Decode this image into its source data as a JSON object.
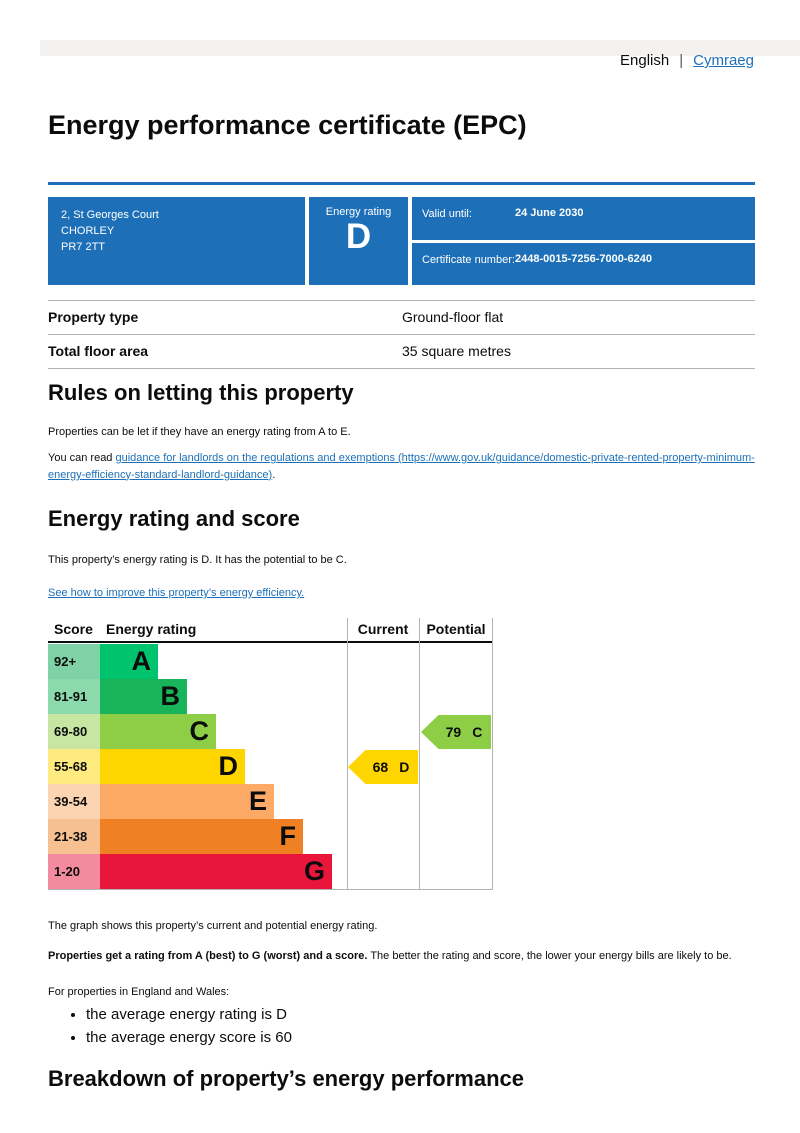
{
  "language_bar": {
    "current": "English",
    "separator": "|",
    "link": "Cymraeg"
  },
  "page_title": "Energy performance certificate (EPC)",
  "banner": {
    "address_lines": [
      "2, St Georges Court",
      "CHORLEY",
      "PR7 2TT"
    ],
    "rating_label": "Energy rating",
    "rating_value": "D",
    "valid_until_label": "Valid until:",
    "valid_until_value": "24 June 2030",
    "certificate_number_label": "Certificate number:",
    "certificate_number_value": "2448-0015-7256-7000-6240"
  },
  "summary": {
    "rows": [
      {
        "label": "Property type",
        "value": "Ground-floor flat"
      },
      {
        "label": "Total floor area",
        "value": "35 square metres"
      }
    ]
  },
  "rules_section": {
    "heading": "Rules on letting this property",
    "paragraph1": "Properties can be let if they have an energy rating from A to E.",
    "paragraph2_prefix": "You can read ",
    "paragraph2_link": "guidance for landlords on the regulations and exemptions (https://www.gov.uk/guidance/domestic-private-rented-property-minimum-energy-efficiency-standard-landlord-guidance)",
    "paragraph2_suffix": "."
  },
  "rating_section": {
    "heading": "Energy rating and score",
    "paragraph": "This property’s energy rating is D. It has the potential to be C.",
    "improve_link": "See how to improve this property’s energy efficiency."
  },
  "chart_data": {
    "type": "bar",
    "title": "Energy rating and score graph",
    "headers": {
      "score": "Score",
      "rating": "Energy rating",
      "current": "Current",
      "potential": "Potential"
    },
    "bands": [
      {
        "score_range": "92+",
        "letter": "A",
        "band_color": "#00c36d",
        "score_bg_color": "#7fd2a6"
      },
      {
        "score_range": "81-91",
        "letter": "B",
        "band_color": "#19b459",
        "score_bg_color": "#8cd9ac"
      },
      {
        "score_range": "69-80",
        "letter": "C",
        "band_color": "#8dce46",
        "score_bg_color": "#c6e6a2"
      },
      {
        "score_range": "55-68",
        "letter": "D",
        "band_color": "#ffd500",
        "score_bg_color": "#ffea80"
      },
      {
        "score_range": "39-54",
        "letter": "E",
        "band_color": "#fcaa65",
        "score_bg_color": "#fdd4b2"
      },
      {
        "score_range": "21-38",
        "letter": "F",
        "band_color": "#ef8023",
        "score_bg_color": "#f7c091"
      },
      {
        "score_range": "1-20",
        "letter": "G",
        "band_color": "#e9153b",
        "score_bg_color": "#f48a9d"
      }
    ],
    "current": {
      "score": 68,
      "rating": "D",
      "arrow_color": "#ffd500",
      "band_index": 3
    },
    "potential": {
      "score": 79,
      "rating": "C",
      "arrow_color": "#8dce46",
      "band_index": 2
    }
  },
  "graph_notes": {
    "note1": "The graph shows this property’s current and potential energy rating.",
    "note2_bold": "Properties get a rating from A (best) to G (worst) and a score.",
    "note2_rest": " The better the rating and score, the lower your energy bills are likely to be.",
    "note3": "For properties in England and Wales:",
    "averages": [
      "the average energy rating is D",
      "the average energy score is 60"
    ]
  },
  "breakdown_heading": "Breakdown of property’s energy performance",
  "colors": {
    "accent_blue": "#1d70b8",
    "banner_blue": "#1d70b8",
    "border_gray": "#b1b4b6",
    "strip_gray": "#f3f2f1"
  }
}
